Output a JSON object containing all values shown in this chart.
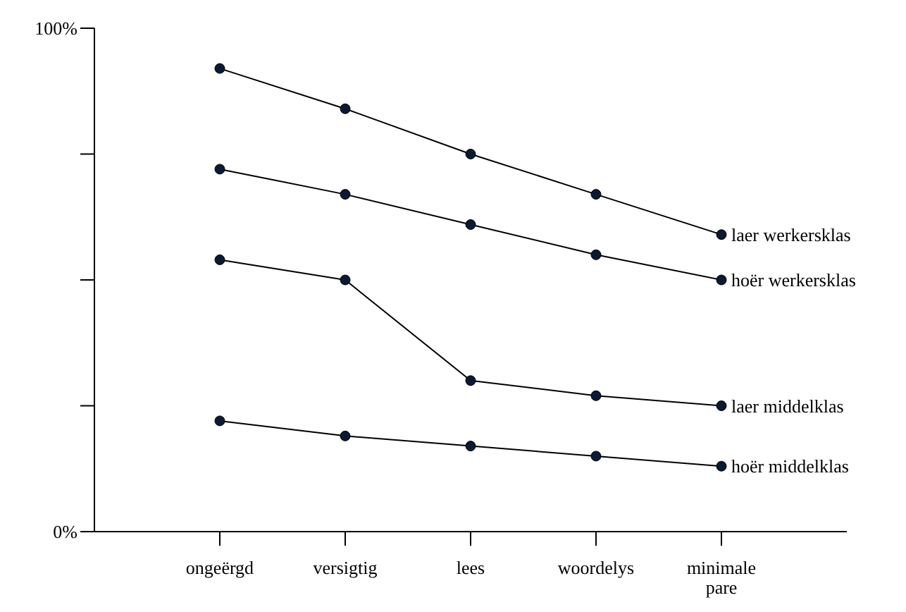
{
  "chart_data": {
    "type": "line",
    "categories": [
      "ongeërgd",
      "versigtig",
      "lees",
      "woordelys",
      "minimale pare"
    ],
    "series": [
      {
        "name": "laer werkersklas",
        "color": "#000000",
        "values": [
          92,
          84,
          75,
          67,
          59
        ]
      },
      {
        "name": "hoër werkersklas",
        "color": "#000000",
        "values": [
          72,
          67,
          61,
          55,
          50
        ]
      },
      {
        "name": "laer middelklas",
        "color": "#000000",
        "values": [
          54,
          50,
          30,
          27,
          25
        ]
      },
      {
        "name": "hoër middelklas",
        "color": "#000000",
        "values": [
          22,
          19,
          17,
          15,
          13
        ]
      }
    ],
    "ylim": [
      0,
      100
    ],
    "yticks": [
      {
        "value": 0,
        "label": "0%"
      },
      {
        "value": 25,
        "label": null
      },
      {
        "value": 50,
        "label": null
      },
      {
        "value": 75,
        "label": null
      },
      {
        "value": 100,
        "label": "100%"
      }
    ],
    "marker": "circle",
    "line_style": "solid",
    "grid": false
  }
}
